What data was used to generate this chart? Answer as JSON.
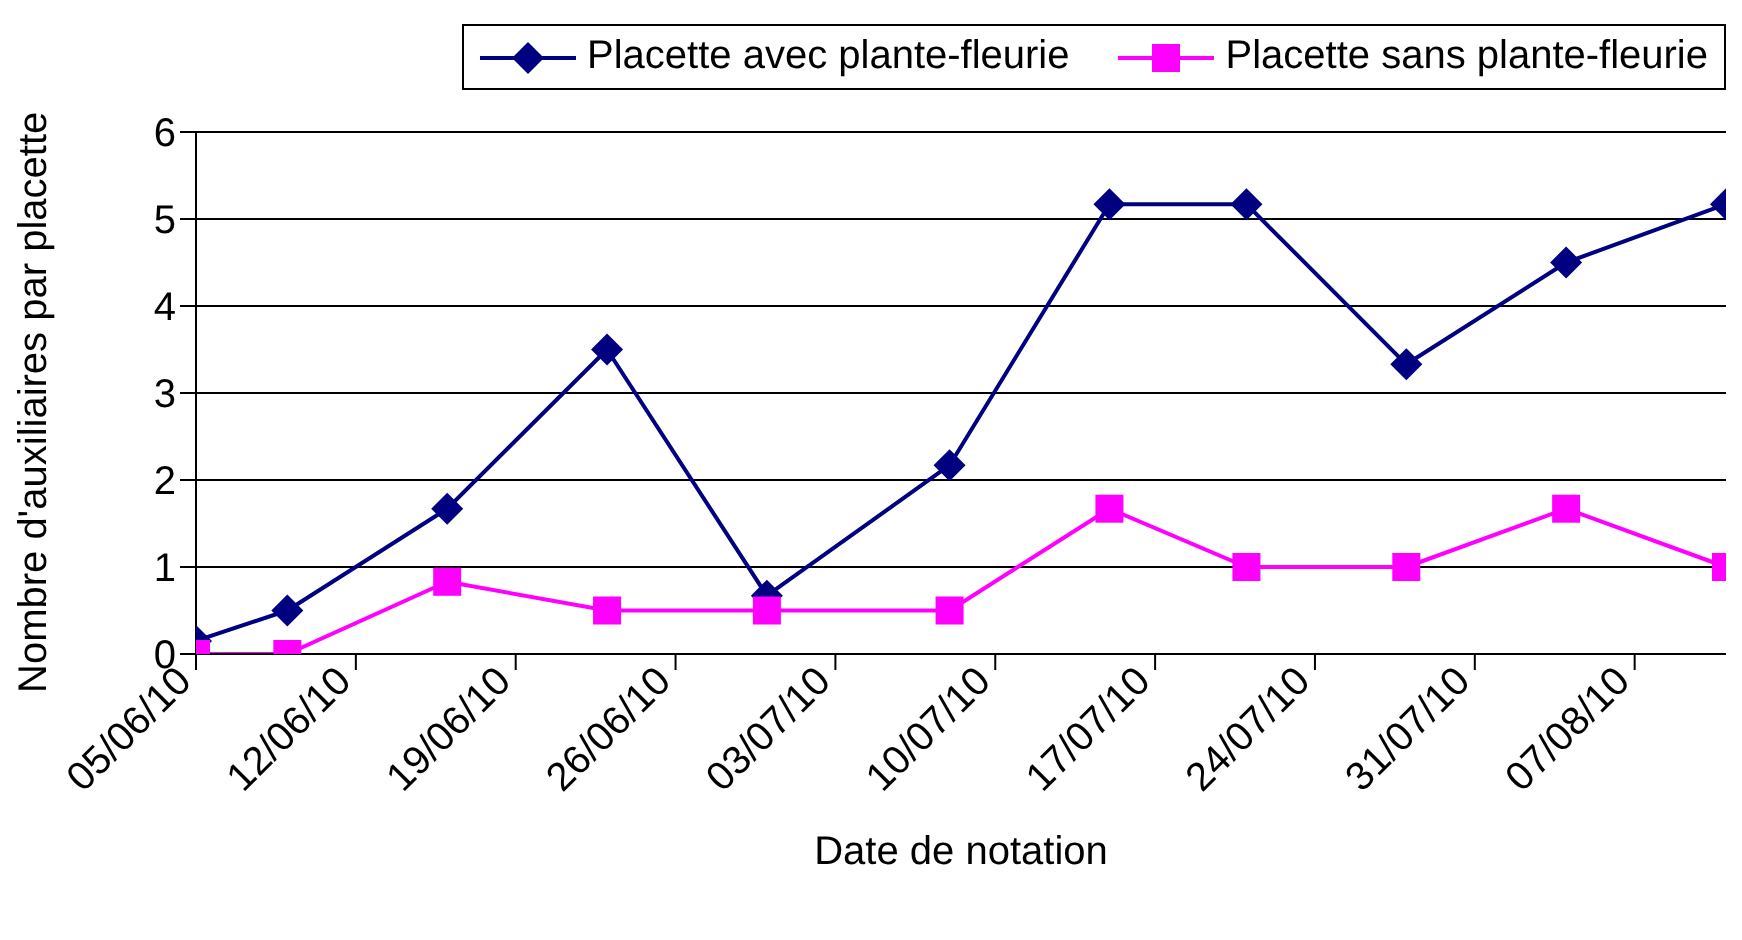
{
  "chart_data": {
    "type": "line",
    "xlabel": "Date de notation",
    "ylabel": "Nombre d'auxiliaires par placette",
    "x": [
      "--06-05",
      "--06-09",
      "--06-16",
      "--06-23",
      "--06-30",
      "--07-08",
      "--07-15",
      "--07-21",
      "--07-28",
      "--08-04",
      "--08-11"
    ],
    "series": [
      {
        "name": "Placette avec plante-fleurie",
        "color": "#000080",
        "marker": "diamond",
        "values": [
          0.15,
          0.5,
          1.67,
          3.5,
          0.67,
          2.17,
          5.17,
          5.17,
          3.33,
          4.5,
          5.17
        ]
      },
      {
        "name": "Placette sans plante-fleurie",
        "color": "#ff00ff",
        "marker": "square",
        "values": [
          0,
          0,
          0.83,
          0.5,
          0.5,
          0.5,
          1.67,
          1,
          1,
          1.67,
          1
        ]
      }
    ],
    "xlim": [
      "--06-05",
      "--08-11"
    ],
    "xticks": [
      {
        "value": "--06-05",
        "label": "05/06/10"
      },
      {
        "value": "--06-12",
        "label": "12/06/10"
      },
      {
        "value": "--06-19",
        "label": "19/06/10"
      },
      {
        "value": "--06-26",
        "label": "26/06/10"
      },
      {
        "value": "--07-03",
        "label": "03/07/10"
      },
      {
        "value": "--07-10",
        "label": "10/07/10"
      },
      {
        "value": "--07-17",
        "label": "17/07/10"
      },
      {
        "value": "--07-24",
        "label": "24/07/10"
      },
      {
        "value": "--07-31",
        "label": "31/07/10"
      },
      {
        "value": "--08-07",
        "label": "07/08/10"
      }
    ],
    "ylim": [
      0,
      6
    ],
    "yticks": [
      0,
      1,
      2,
      3,
      4,
      5,
      6
    ],
    "grid": "y",
    "legend": "top right",
    "line_style": "solid"
  }
}
